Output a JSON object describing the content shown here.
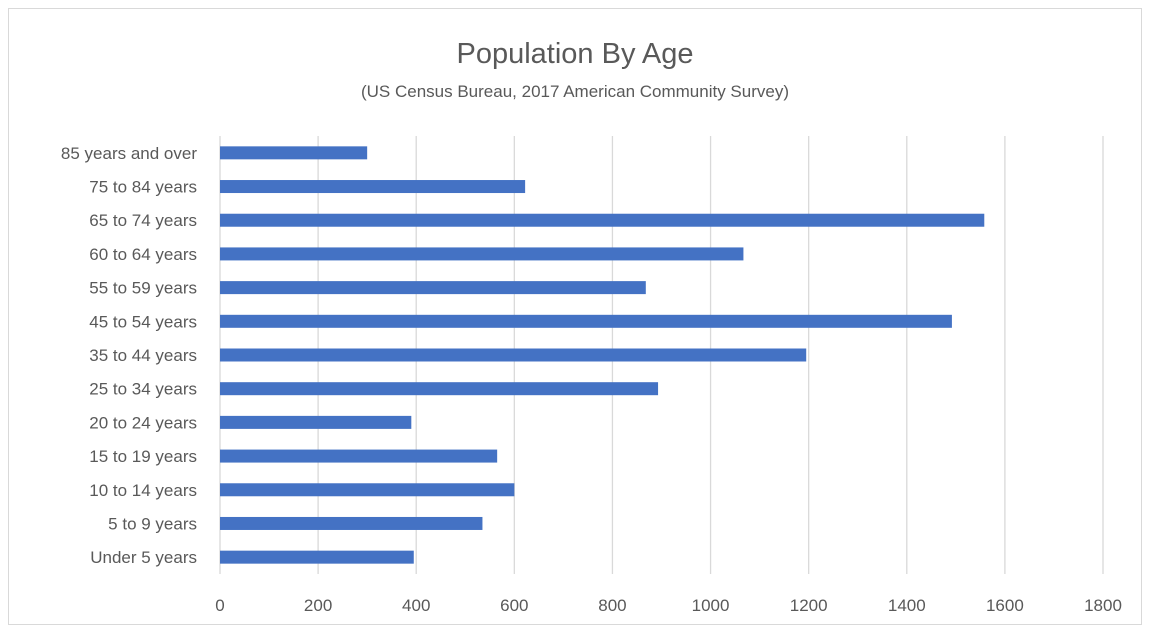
{
  "chart_data": {
    "type": "bar",
    "orientation": "horizontal",
    "title": "Population By Age",
    "subtitle": "(US Census Bureau, 2017 American Community Survey)",
    "xlabel": "",
    "ylabel": "",
    "categories": [
      "Under 5 years",
      "5 to 9 years",
      "10 to 14 years",
      "15 to 19 years",
      "20 to 24 years",
      "25 to 34 years",
      "35 to 44 years",
      "45 to 54 years",
      "55 to 59 years",
      "60 to 64 years",
      "65 to 74 years",
      "75 to 84 years",
      "85 years and over"
    ],
    "values": [
      395,
      535,
      600,
      565,
      390,
      893,
      1195,
      1492,
      868,
      1067,
      1558,
      622,
      300
    ],
    "xlim": [
      0,
      1800
    ],
    "xticks": [
      "0",
      "200",
      "400",
      "600",
      "800",
      "1000",
      "1200",
      "1400",
      "1600",
      "1800"
    ],
    "grid": true,
    "bar_color": "#4472c4",
    "grid_color": "#d9d9d9",
    "text_color": "#595959"
  }
}
